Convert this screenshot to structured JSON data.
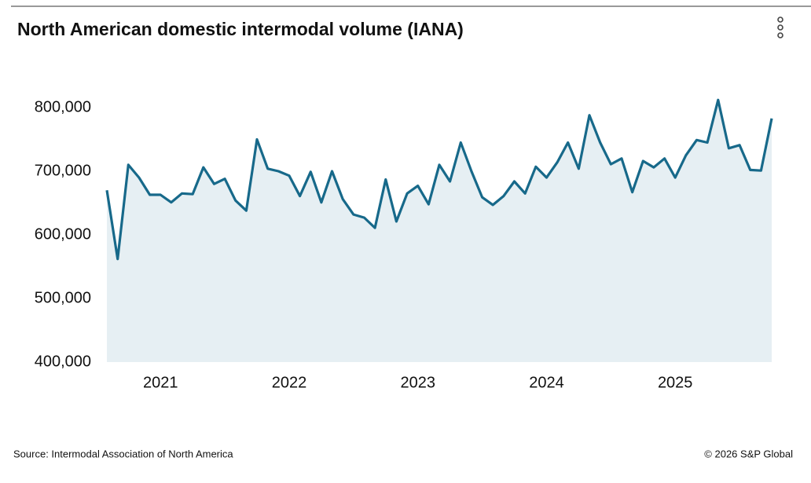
{
  "chart_data": {
    "type": "line",
    "title": "North American domestic intermodal volume (IANA)",
    "source": "Source: Intermodal Association of North America",
    "copyright": "© 2026 S&P Global",
    "x": [
      2020.5833,
      2020.6667,
      2020.75,
      2020.8333,
      2020.9167,
      2021,
      2021.0833,
      2021.1667,
      2021.25,
      2021.3333,
      2021.4167,
      2021.5,
      2021.5833,
      2021.6667,
      2021.75,
      2021.8333,
      2021.9167,
      2022,
      2022.0833,
      2022.1667,
      2022.25,
      2022.3333,
      2022.4167,
      2022.5,
      2022.5833,
      2022.6667,
      2022.75,
      2022.8333,
      2022.9167,
      2023,
      2023.0833,
      2023.1667,
      2023.25,
      2023.3333,
      2023.4167,
      2023.5,
      2023.5833,
      2023.6667,
      2023.75,
      2023.8333,
      2023.9167,
      2024,
      2024.0833,
      2024.1667,
      2024.25,
      2024.3333,
      2024.4167,
      2024.5,
      2024.5833,
      2024.6667,
      2024.75,
      2024.8333,
      2024.9167,
      2025,
      2025.0833,
      2025.1667,
      2025.25,
      2025.3333,
      2025.4167,
      2025.5,
      2025.5833,
      2025.6667,
      2025.75
    ],
    "series": [
      {
        "name": "Domestic intermodal volume",
        "color": "#17698a",
        "fill": "#e6eff3",
        "values": [
          670000,
          562000,
          710000,
          690000,
          663000,
          663000,
          651000,
          665000,
          664000,
          706000,
          680000,
          688000,
          654000,
          638000,
          750000,
          704000,
          700000,
          693000,
          661000,
          699000,
          651000,
          700000,
          656000,
          632000,
          627000,
          611000,
          687000,
          621000,
          665000,
          677000,
          648000,
          710000,
          684000,
          745000,
          700000,
          659000,
          647000,
          661000,
          684000,
          665000,
          707000,
          690000,
          714000,
          745000,
          704000,
          788000,
          745000,
          711000,
          720000,
          667000,
          716000,
          706000,
          720000,
          690000,
          725000,
          749000,
          745000,
          812000,
          736000,
          741000,
          702000,
          701000,
          783000
        ]
      }
    ],
    "xlim": [
      2020.5833,
      2025.75
    ],
    "xticks": [
      2021,
      2022,
      2023,
      2024,
      2025
    ],
    "ylim": [
      400000,
      850000
    ],
    "yticks": [
      {
        "value": 400000,
        "label": "400,000"
      },
      {
        "value": 500000,
        "label": "500,000"
      },
      {
        "value": 600000,
        "label": "600,000"
      },
      {
        "value": 700000,
        "label": "700,000"
      },
      {
        "value": 800000,
        "label": "800,000"
      }
    ],
    "grid": false
  }
}
